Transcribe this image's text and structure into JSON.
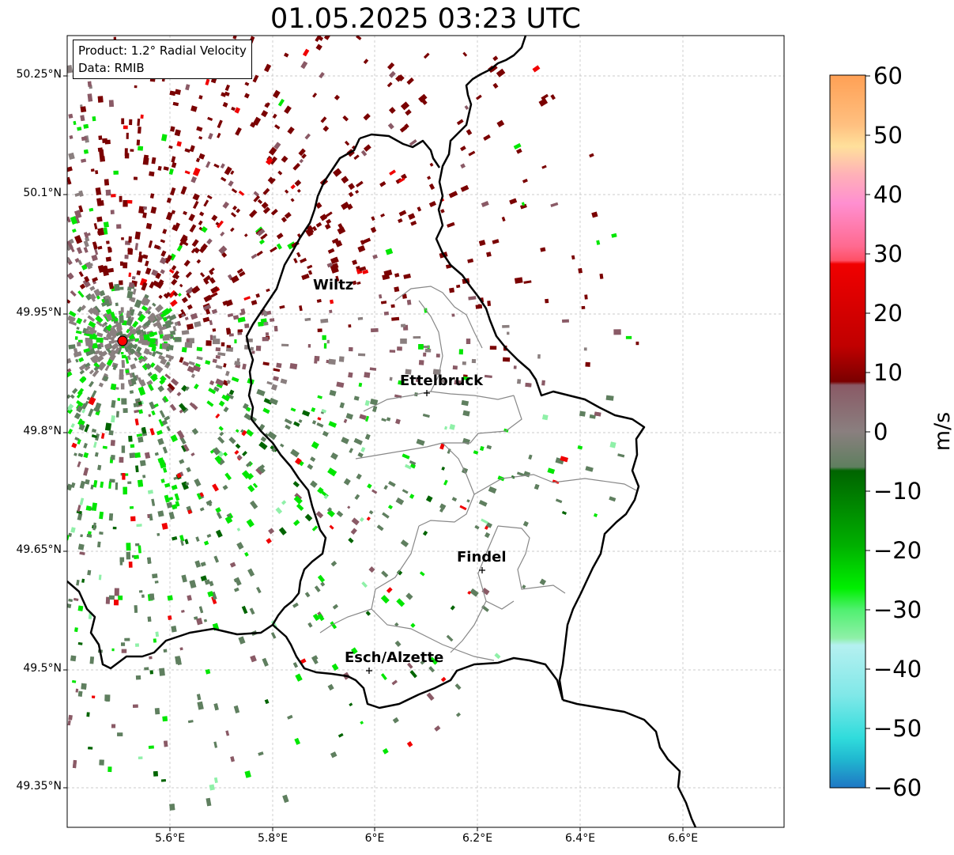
{
  "title": "01.05.2025 03:23 UTC",
  "info": {
    "product": "Product: 1.2° Radial Velocity",
    "source": "Data: RMIB"
  },
  "latitude_labels": [
    "50.25°N",
    "50.1°N",
    "49.95°N",
    "49.8°N",
    "49.65°N",
    "49.5°N",
    "49.35°N"
  ],
  "longitude_labels": [
    "5.6°E",
    "5.8°E",
    "6°E",
    "6.2°E",
    "6.4°E",
    "6.6°E"
  ],
  "cities": [
    {
      "name": "Wiltz"
    },
    {
      "name": "Ettelbruck"
    },
    {
      "name": "Findel"
    },
    {
      "name": "Esch/Alzette"
    }
  ],
  "colorbar": {
    "label": "m/s",
    "ticks": [
      "60",
      "50",
      "40",
      "30",
      "20",
      "10",
      "0",
      "−10",
      "−20",
      "−30",
      "−40",
      "−50",
      "−60"
    ],
    "range": [
      -60,
      60
    ],
    "colors": {
      "neg_blue": "#1f77c4",
      "neg_cyan": "#30dcdc",
      "neg_lightcyan": "#b5f0f0",
      "neg_lightgreen": "#8ff0a8",
      "neg_green": "#00e600",
      "neg_darkgreen": "#006400",
      "zero_green_gray": "#5f7f5f",
      "zero_gray": "#8a7f7f",
      "pos_mauve": "#8a5a66",
      "pos_darkred": "#7a0000",
      "pos_red": "#f00000",
      "pos_pink": "#ff5a78",
      "pos_lightpink": "#ff8fd0",
      "pos_peach": "#ffd39b",
      "pos_orange": "#ffa055"
    }
  },
  "radar_site_color": "#ff0000"
}
